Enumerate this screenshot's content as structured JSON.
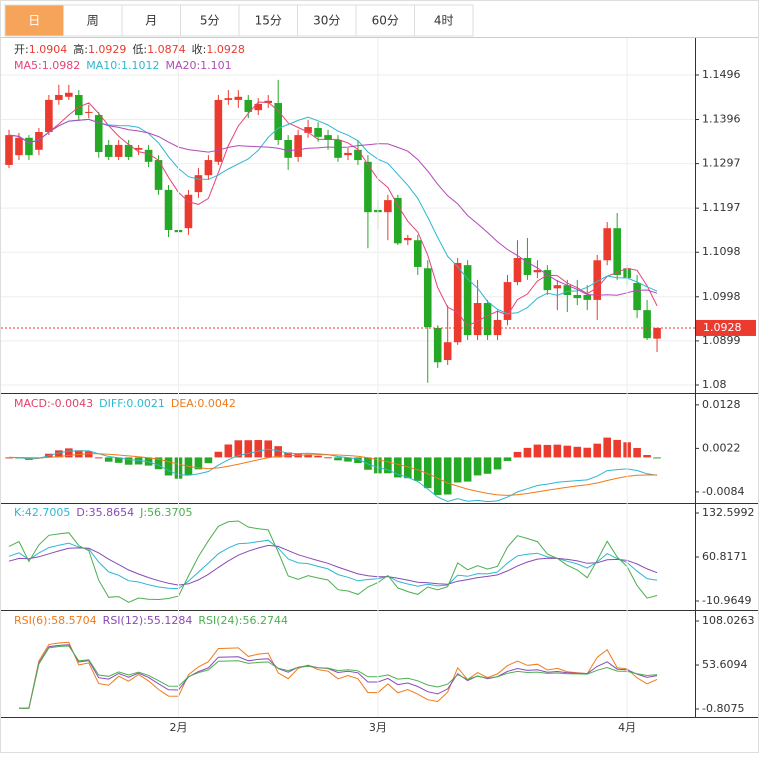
{
  "chart_data": {
    "type": "candlestick",
    "tabs": [
      "日",
      "周",
      "月",
      "5分",
      "15分",
      "30分",
      "60分",
      "4时"
    ],
    "selected_tab": "日",
    "ohlc_labels": [
      "开:",
      "高:",
      "低:",
      "收:"
    ],
    "up_color": "#eb3b2f",
    "down_color": "#25a825",
    "categories": [
      null,
      null,
      null,
      null,
      null,
      null,
      null,
      null,
      null,
      null,
      null,
      null,
      null,
      null,
      null,
      null,
      null,
      "2月",
      null,
      null,
      null,
      null,
      null,
      null,
      null,
      null,
      null,
      null,
      null,
      null,
      null,
      null,
      null,
      null,
      null,
      null,
      null,
      "3月",
      null,
      null,
      null,
      null,
      null,
      null,
      null,
      null,
      null,
      null,
      null,
      null,
      null,
      null,
      null,
      null,
      null,
      null,
      null,
      null,
      null,
      null,
      null,
      null,
      "4月",
      null,
      null,
      null
    ],
    "open": [
      1.1294,
      1.1316,
      1.1355,
      1.1328,
      1.1368,
      1.144,
      1.1447,
      1.1451,
      1.1411,
      1.1406,
      1.1339,
      1.1312,
      1.1339,
      1.1328,
      1.1328,
      1.1305,
      1.1238,
      1.1148,
      1.1152,
      1.1233,
      1.1271,
      1.1301,
      1.144,
      1.144,
      1.144,
      1.1417,
      1.1433,
      1.1433,
      1.135,
      1.1312,
      1.1366,
      1.1377,
      1.1361,
      1.135,
      1.1316,
      1.1328,
      1.1301,
      1.1193,
      1.1188,
      1.122,
      1.1125,
      1.1125,
      1.1062,
      1.0928,
      1.0856,
      1.0896,
      1.1069,
      1.0912,
      1.0984,
      1.0912,
      1.0946,
      1.1031,
      1.1085,
      1.1053,
      1.1058,
      1.1017,
      1.1024,
      1.1002,
      1.1002,
      1.0991,
      1.108,
      1.1152,
      1.1062,
      1.1029,
      1.0968,
      1.0904
    ],
    "high": [
      1.1373,
      1.1366,
      1.1361,
      1.1377,
      1.1451,
      1.1474,
      1.1474,
      1.1462,
      1.1429,
      1.1413,
      1.135,
      1.135,
      1.135,
      1.1339,
      1.1339,
      1.1316,
      1.1249,
      1.1159,
      1.1238,
      1.1287,
      1.1316,
      1.1451,
      1.1462,
      1.1462,
      1.1451,
      1.1444,
      1.1451,
      1.1485,
      1.1361,
      1.1373,
      1.1395,
      1.139,
      1.1373,
      1.1361,
      1.1332,
      1.135,
      1.1316,
      1.1215,
      1.1227,
      1.1227,
      1.1137,
      1.1137,
      1.108,
      1.0934,
      1.0979,
      1.1085,
      1.108,
      1.1036,
      1.0991,
      1.0968,
      1.1047,
      1.1125,
      1.113,
      1.108,
      1.1069,
      1.1036,
      1.1036,
      1.1036,
      1.1024,
      1.1092,
      1.1166,
      1.1186,
      1.1069,
      1.1047,
      1.0991,
      1.0929
    ],
    "low": [
      1.1287,
      1.1305,
      1.1305,
      1.1316,
      1.1361,
      1.1429,
      1.144,
      1.1395,
      1.1399,
      1.131,
      1.1305,
      1.1305,
      1.1305,
      1.1316,
      1.1289,
      1.1227,
      1.1132,
      1.1121,
      1.1137,
      1.122,
      1.126,
      1.1294,
      1.1429,
      1.1422,
      1.1399,
      1.1406,
      1.1422,
      1.1339,
      1.1283,
      1.1301,
      1.1355,
      1.1346,
      1.1328,
      1.1301,
      1.1305,
      1.1294,
      1.1107,
      1.1148,
      1.1125,
      1.1114,
      1.1114,
      1.1047,
      1.0805,
      1.0838,
      1.0845,
      1.089,
      1.0901,
      1.0901,
      1.0901,
      1.0901,
      1.0934,
      1.1024,
      1.1036,
      1.104,
      1.1002,
      1.0968,
      1.0964,
      1.0979,
      1.0968,
      1.0946,
      1.1069,
      1.1036,
      1.1024,
      1.095,
      1.0901,
      1.0874
    ],
    "close": [
      1.1361,
      1.1355,
      1.1316,
      1.1368,
      1.144,
      1.1451,
      1.1456,
      1.1406,
      1.1413,
      1.1323,
      1.1312,
      1.1339,
      1.1312,
      1.1332,
      1.1301,
      1.1238,
      1.1148,
      1.1143,
      1.1227,
      1.1271,
      1.1305,
      1.144,
      1.1444,
      1.1447,
      1.1413,
      1.1431,
      1.1438,
      1.135,
      1.131,
      1.1361,
      1.1379,
      1.1357,
      1.135,
      1.131,
      1.1321,
      1.1305,
      1.1188,
      1.1188,
      1.1215,
      1.1118,
      1.113,
      1.1065,
      1.093,
      1.0851,
      1.0896,
      1.1074,
      1.0912,
      1.0984,
      1.0912,
      1.0946,
      1.1031,
      1.1085,
      1.1047,
      1.1058,
      1.1013,
      1.1024,
      1.1002,
      1.0995,
      1.0991,
      1.108,
      1.1152,
      1.1047,
      1.104,
      1.0968,
      1.0905,
      1.0928
    ],
    "ylim": [
      1.0782,
      1.1579
    ],
    "yticks": [
      1.1496,
      1.1396,
      1.1297,
      1.1197,
      1.1098,
      1.0998,
      1.0899,
      1.08
    ],
    "moving_averages": [
      {
        "label": "MA5:",
        "period": 5,
        "value": 1.0982,
        "color": "#e2457a"
      },
      {
        "label": "MA10:",
        "period": 10,
        "value": 1.1012,
        "color": "#2db7d2"
      },
      {
        "label": "MA20:",
        "period": 20,
        "value": 1.101,
        "color": "#b04ab8"
      }
    ],
    "macd": {
      "ylim": [
        -0.0111,
        0.0152
      ],
      "yticks": [
        0.0128,
        0.0022,
        -0.0084
      ],
      "legend": [
        {
          "label": "MACD:",
          "value": -0.0043,
          "color": "#e0436b"
        },
        {
          "label": "DIFF:",
          "value": 0.0021,
          "color": "#2db7d2"
        },
        {
          "label": "DEA:",
          "value": 0.0042,
          "color": "#f07a1a"
        }
      ]
    },
    "kdj": {
      "ylim": [
        -25.65,
        145.65
      ],
      "yticks": [
        132.5992,
        60.8171,
        -10.9649
      ],
      "legend": [
        {
          "label": "K:",
          "value": 42.7005,
          "color": "#2db7d2"
        },
        {
          "label": "D:",
          "value": 35.8654,
          "color": "#8a4ab8"
        },
        {
          "label": "J:",
          "value": 56.3705,
          "color": "#4caf50"
        }
      ]
    },
    "rsi": {
      "ylim": [
        -10.7,
        119.16
      ],
      "yticks": [
        108.0263,
        53.6094,
        -0.8075
      ],
      "legend": [
        {
          "label": "RSI(6):",
          "period": 6,
          "value": 58.5704,
          "color": "#f07a1a"
        },
        {
          "label": "RSI(12):",
          "period": 12,
          "value": 55.1284,
          "color": "#8a4ab8"
        },
        {
          "label": "RSI(24):",
          "period": 24,
          "value": 56.2744,
          "color": "#4caf50"
        }
      ]
    }
  }
}
